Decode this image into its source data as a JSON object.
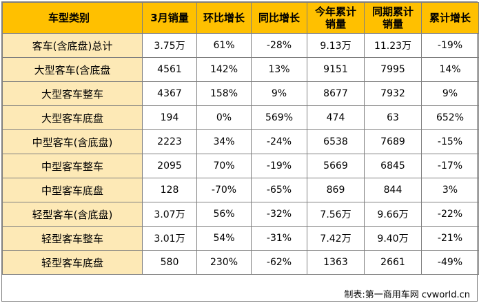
{
  "table": {
    "headers": [
      "车型类别",
      "3月销量",
      "环比增长",
      "同比增长",
      "今年累计\n销量",
      "同期累计\n销量",
      "累计增长"
    ],
    "rows": [
      [
        "客车(含底盘)总计",
        "3.75万",
        "61%",
        "-28%",
        "9.13万",
        "11.23万",
        "-19%"
      ],
      [
        "大型客车(含底盘",
        "4561",
        "142%",
        "13%",
        "9151",
        "7995",
        "14%"
      ],
      [
        "大型客车整车",
        "4367",
        "158%",
        "9%",
        "8677",
        "7932",
        "9%"
      ],
      [
        "大型客车底盘",
        "194",
        "0%",
        "569%",
        "474",
        "63",
        "652%"
      ],
      [
        "中型客车(含底盘)",
        "2223",
        "34%",
        "-24%",
        "6538",
        "7689",
        "-15%"
      ],
      [
        "中型客车整车",
        "2095",
        "70%",
        "-19%",
        "5669",
        "6845",
        "-17%"
      ],
      [
        "中型客车底盘",
        "128",
        "-70%",
        "-65%",
        "869",
        "844",
        "3%"
      ],
      [
        "轻型客车(含底盘)",
        "3.07万",
        "56%",
        "-32%",
        "7.56万",
        "9.66万",
        "-22%"
      ],
      [
        "轻型客车整车",
        "3.01万",
        "54%",
        "-31%",
        "7.42万",
        "9.40万",
        "-21%"
      ],
      [
        "轻型客车底盘",
        "580",
        "230%",
        "-62%",
        "1363",
        "2661",
        "-49%"
      ]
    ]
  },
  "footer": "制表:第一商用车网 cvworld.cn",
  "colors": {
    "header_bg": "#ffc000",
    "category_bg": "#fde9b6",
    "border": "#7f7f7f"
  }
}
